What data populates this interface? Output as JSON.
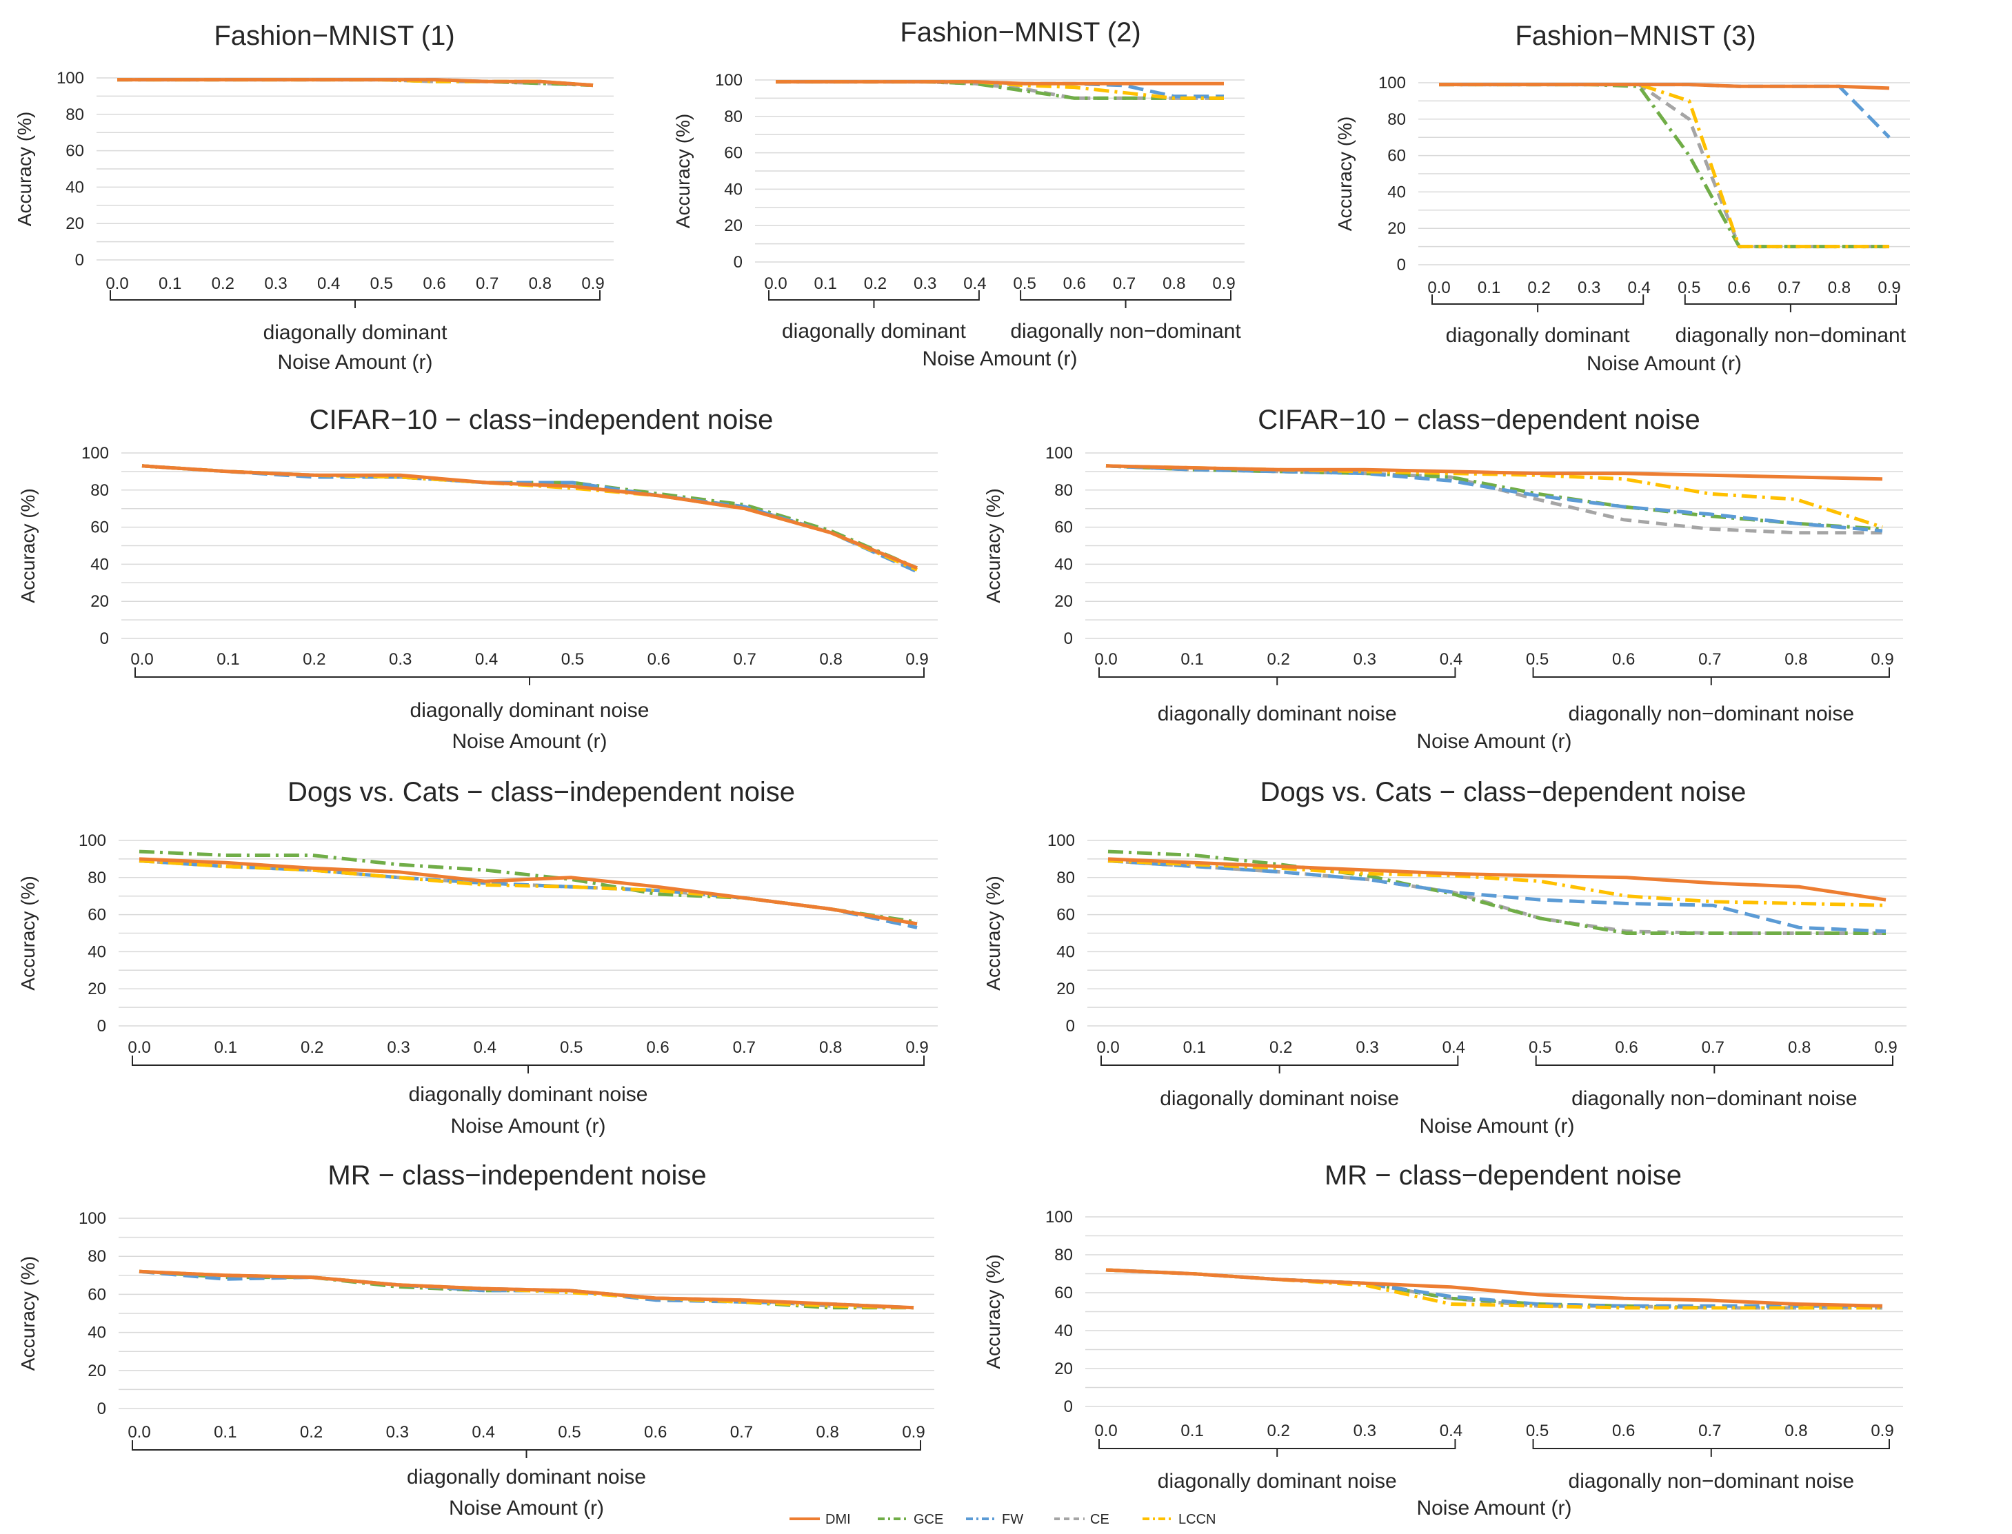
{
  "figure": {
    "legend": [
      {
        "name": "DMI",
        "color": "#ed7d31",
        "dash": ""
      },
      {
        "name": "GCE",
        "color": "#70ad47",
        "dash": "22,8,4,8"
      },
      {
        "name": "FW",
        "color": "#5b9bd5",
        "dash": "22,10"
      },
      {
        "name": "CE",
        "color": "#a5a5a5",
        "dash": "16,10"
      },
      {
        "name": "LCCN",
        "color": "#ffc000",
        "dash": "22,8,4,8"
      }
    ]
  },
  "chart_data": [
    {
      "type": "line",
      "title": "Fashion−MNIST (1)",
      "xlabel": "Noise Amount (r)",
      "ylabel": "Accuracy (%)",
      "ylim": [
        0,
        100
      ],
      "yticks": [
        0,
        20,
        40,
        60,
        80,
        100
      ],
      "x": [
        "0.0",
        "0.1",
        "0.2",
        "0.3",
        "0.4",
        "0.5",
        "0.6",
        "0.7",
        "0.8",
        "0.9"
      ],
      "groups": [
        {
          "label": "diagonally dominant",
          "from": 0,
          "to": 9
        }
      ],
      "grid": true,
      "series": [
        {
          "name": "DMI",
          "values": [
            99,
            99,
            99,
            99,
            99,
            99,
            99,
            98,
            98,
            96
          ]
        },
        {
          "name": "GCE",
          "values": [
            99,
            99,
            99,
            99,
            99,
            99,
            98,
            98,
            97,
            96
          ]
        },
        {
          "name": "FW",
          "values": [
            99,
            99,
            99,
            99,
            99,
            99,
            99,
            98,
            98,
            96
          ]
        },
        {
          "name": "CE",
          "values": [
            99,
            99,
            99,
            99,
            99,
            99,
            98,
            98,
            97,
            96
          ]
        },
        {
          "name": "LCCN",
          "values": [
            99,
            99,
            99,
            99,
            99,
            99,
            98,
            98,
            98,
            96
          ]
        }
      ]
    },
    {
      "type": "line",
      "title": "Fashion−MNIST (2)",
      "xlabel": "Noise Amount (r)",
      "ylabel": "Accuracy (%)",
      "ylim": [
        0,
        100
      ],
      "yticks": [
        0,
        20,
        40,
        60,
        80,
        100
      ],
      "x": [
        "0.0",
        "0.1",
        "0.2",
        "0.3",
        "0.4",
        "0.5",
        "0.6",
        "0.7",
        "0.8",
        "0.9"
      ],
      "groups": [
        {
          "label": "diagonally dominant",
          "from": 0,
          "to": 4
        },
        {
          "label": "diagonally non−dominant",
          "from": 5,
          "to": 9
        }
      ],
      "grid": true,
      "series": [
        {
          "name": "DMI",
          "values": [
            99,
            99,
            99,
            99,
            99,
            98,
            98,
            98,
            98,
            98
          ]
        },
        {
          "name": "GCE",
          "values": [
            99,
            99,
            99,
            99,
            98,
            94,
            90,
            90,
            90,
            90
          ]
        },
        {
          "name": "FW",
          "values": [
            99,
            99,
            99,
            99,
            99,
            98,
            98,
            97,
            91,
            91
          ]
        },
        {
          "name": "CE",
          "values": [
            99,
            99,
            99,
            99,
            98,
            95,
            90,
            90,
            90,
            90
          ]
        },
        {
          "name": "LCCN",
          "values": [
            99,
            99,
            99,
            99,
            99,
            97,
            96,
            93,
            90,
            90
          ]
        }
      ]
    },
    {
      "type": "line",
      "title": "Fashion−MNIST (3)",
      "xlabel": "Noise Amount (r)",
      "ylabel": "Accuracy (%)",
      "ylim": [
        0,
        100
      ],
      "yticks": [
        0,
        20,
        40,
        60,
        80,
        100
      ],
      "x": [
        "0.0",
        "0.1",
        "0.2",
        "0.3",
        "0.4",
        "0.5",
        "0.6",
        "0.7",
        "0.8",
        "0.9"
      ],
      "groups": [
        {
          "label": "diagonally dominant",
          "from": 0,
          "to": 4
        },
        {
          "label": "diagonally non−dominant",
          "from": 5,
          "to": 9
        }
      ],
      "grid": true,
      "series": [
        {
          "name": "DMI",
          "values": [
            99,
            99,
            99,
            99,
            99,
            99,
            98,
            98,
            98,
            97
          ]
        },
        {
          "name": "GCE",
          "values": [
            99,
            99,
            99,
            99,
            98,
            60,
            10,
            10,
            10,
            10
          ]
        },
        {
          "name": "FW",
          "values": [
            99,
            99,
            99,
            99,
            99,
            99,
            98,
            98,
            98,
            70
          ]
        },
        {
          "name": "CE",
          "values": [
            99,
            99,
            99,
            99,
            99,
            80,
            10,
            10,
            10,
            10
          ]
        },
        {
          "name": "LCCN",
          "values": [
            99,
            99,
            99,
            99,
            99,
            90,
            10,
            10,
            10,
            10
          ]
        }
      ]
    },
    {
      "type": "line",
      "title": "CIFAR−10 − class−independent noise",
      "xlabel": "Noise Amount (r)",
      "ylabel": "Accuracy (%)",
      "ylim": [
        0,
        100
      ],
      "yticks": [
        0,
        20,
        40,
        60,
        80,
        100
      ],
      "x": [
        "0.0",
        "0.1",
        "0.2",
        "0.3",
        "0.4",
        "0.5",
        "0.6",
        "0.7",
        "0.8",
        "0.9"
      ],
      "groups": [
        {
          "label": "diagonally dominant noise",
          "from": 0,
          "to": 9
        }
      ],
      "grid": true,
      "series": [
        {
          "name": "DMI",
          "values": [
            93,
            90,
            88,
            88,
            84,
            82,
            77,
            70,
            57,
            38
          ]
        },
        {
          "name": "GCE",
          "values": [
            93,
            90,
            88,
            87,
            84,
            84,
            78,
            72,
            58,
            38
          ]
        },
        {
          "name": "FW",
          "values": [
            93,
            90,
            87,
            87,
            84,
            84,
            77,
            71,
            57,
            36
          ]
        },
        {
          "name": "CE",
          "values": [
            93,
            90,
            88,
            87,
            84,
            82,
            77,
            71,
            57,
            37
          ]
        },
        {
          "name": "LCCN",
          "values": [
            93,
            90,
            88,
            87,
            84,
            81,
            77,
            70,
            57,
            37
          ]
        }
      ]
    },
    {
      "type": "line",
      "title": "CIFAR−10 − class−dependent noise",
      "xlabel": "Noise Amount (r)",
      "ylabel": "Accuracy (%)",
      "ylim": [
        0,
        100
      ],
      "yticks": [
        0,
        20,
        40,
        60,
        80,
        100
      ],
      "x": [
        "0.0",
        "0.1",
        "0.2",
        "0.3",
        "0.4",
        "0.5",
        "0.6",
        "0.7",
        "0.8",
        "0.9"
      ],
      "groups": [
        {
          "label": "diagonally dominant noise",
          "from": 0,
          "to": 4
        },
        {
          "label": "diagonally non−dominant noise",
          "from": 5,
          "to": 9
        }
      ],
      "grid": true,
      "series": [
        {
          "name": "DMI",
          "values": [
            93,
            92,
            91,
            91,
            90,
            89,
            89,
            88,
            87,
            86
          ]
        },
        {
          "name": "GCE",
          "values": [
            93,
            91,
            90,
            89,
            87,
            78,
            71,
            66,
            62,
            59
          ]
        },
        {
          "name": "FW",
          "values": [
            93,
            91,
            90,
            89,
            85,
            77,
            71,
            67,
            62,
            58
          ]
        },
        {
          "name": "CE",
          "values": [
            93,
            91,
            90,
            89,
            87,
            75,
            64,
            59,
            57,
            57
          ]
        },
        {
          "name": "LCCN",
          "values": [
            93,
            92,
            91,
            90,
            89,
            88,
            86,
            78,
            75,
            60
          ]
        }
      ]
    },
    {
      "type": "line",
      "title": "Dogs vs. Cats − class−independent noise",
      "xlabel": "Noise Amount (r)",
      "ylabel": "Accuracy (%)",
      "ylim": [
        0,
        100
      ],
      "yticks": [
        0,
        20,
        40,
        60,
        80,
        100
      ],
      "x": [
        "0.0",
        "0.1",
        "0.2",
        "0.3",
        "0.4",
        "0.5",
        "0.6",
        "0.7",
        "0.8",
        "0.9"
      ],
      "groups": [
        {
          "label": "diagonally dominant noise",
          "from": 0,
          "to": 9
        }
      ],
      "grid": true,
      "series": [
        {
          "name": "DMI",
          "values": [
            90,
            88,
            85,
            83,
            78,
            80,
            75,
            69,
            63,
            55
          ]
        },
        {
          "name": "GCE",
          "values": [
            94,
            92,
            92,
            87,
            84,
            79,
            71,
            69,
            63,
            56
          ]
        },
        {
          "name": "FW",
          "values": [
            89,
            86,
            84,
            80,
            77,
            75,
            73,
            69,
            63,
            53
          ]
        },
        {
          "name": "CE",
          "values": [
            89,
            86,
            84,
            80,
            77,
            75,
            73,
            69,
            63,
            55
          ]
        },
        {
          "name": "LCCN",
          "values": [
            89,
            86,
            84,
            80,
            76,
            75,
            73,
            69,
            63,
            55
          ]
        }
      ]
    },
    {
      "type": "line",
      "title": "Dogs vs. Cats − class−dependent noise",
      "xlabel": "Noise Amount (r)",
      "ylabel": "Accuracy (%)",
      "ylim": [
        0,
        100
      ],
      "yticks": [
        0,
        20,
        40,
        60,
        80,
        100
      ],
      "x": [
        "0.0",
        "0.1",
        "0.2",
        "0.3",
        "0.4",
        "0.5",
        "0.6",
        "0.7",
        "0.8",
        "0.9"
      ],
      "groups": [
        {
          "label": "diagonally dominant noise",
          "from": 0,
          "to": 4
        },
        {
          "label": "diagonally non−dominant noise",
          "from": 5,
          "to": 9
        }
      ],
      "grid": true,
      "series": [
        {
          "name": "DMI",
          "values": [
            90,
            88,
            86,
            84,
            82,
            81,
            80,
            77,
            75,
            68
          ]
        },
        {
          "name": "GCE",
          "values": [
            94,
            92,
            87,
            81,
            71,
            58,
            50,
            50,
            50,
            50
          ]
        },
        {
          "name": "FW",
          "values": [
            89,
            86,
            83,
            79,
            72,
            68,
            66,
            65,
            53,
            51
          ]
        },
        {
          "name": "CE",
          "values": [
            89,
            86,
            83,
            79,
            72,
            58,
            51,
            50,
            50,
            50
          ]
        },
        {
          "name": "LCCN",
          "values": [
            89,
            87,
            85,
            82,
            81,
            78,
            70,
            67,
            66,
            65
          ]
        }
      ]
    },
    {
      "type": "line",
      "title": "MR − class−independent noise",
      "xlabel": "Noise Amount (r)",
      "ylabel": "Accuracy (%)",
      "ylim": [
        0,
        100
      ],
      "yticks": [
        0,
        20,
        40,
        60,
        80,
        100
      ],
      "x": [
        "0.0",
        "0.1",
        "0.2",
        "0.3",
        "0.4",
        "0.5",
        "0.6",
        "0.7",
        "0.8",
        "0.9"
      ],
      "groups": [
        {
          "label": "diagonally dominant noise",
          "from": 0,
          "to": 9
        }
      ],
      "grid": true,
      "series": [
        {
          "name": "DMI",
          "values": [
            72,
            70,
            69,
            65,
            63,
            62,
            58,
            57,
            55,
            53
          ]
        },
        {
          "name": "GCE",
          "values": [
            72,
            69,
            69,
            64,
            62,
            62,
            58,
            56,
            53,
            53
          ]
        },
        {
          "name": "FW",
          "values": [
            72,
            68,
            69,
            65,
            62,
            62,
            57,
            56,
            55,
            53
          ]
        },
        {
          "name": "CE",
          "values": [
            72,
            70,
            69,
            65,
            63,
            62,
            58,
            57,
            54,
            53
          ]
        },
        {
          "name": "LCCN",
          "values": [
            72,
            70,
            69,
            65,
            63,
            61,
            58,
            56,
            54,
            53
          ]
        }
      ]
    },
    {
      "type": "line",
      "title": "MR − class−dependent noise",
      "xlabel": "Noise Amount (r)",
      "ylabel": "Accuracy (%)",
      "ylim": [
        0,
        100
      ],
      "yticks": [
        0,
        20,
        40,
        60,
        80,
        100
      ],
      "x": [
        "0.0",
        "0.1",
        "0.2",
        "0.3",
        "0.4",
        "0.5",
        "0.6",
        "0.7",
        "0.8",
        "0.9"
      ],
      "groups": [
        {
          "label": "diagonally dominant noise",
          "from": 0,
          "to": 4
        },
        {
          "label": "diagonally non−dominant noise",
          "from": 5,
          "to": 9
        }
      ],
      "grid": true,
      "series": [
        {
          "name": "DMI",
          "values": [
            72,
            70,
            67,
            65,
            63,
            59,
            57,
            56,
            54,
            53
          ]
        },
        {
          "name": "GCE",
          "values": [
            72,
            70,
            67,
            65,
            57,
            54,
            53,
            52,
            52,
            52
          ]
        },
        {
          "name": "FW",
          "values": [
            72,
            70,
            67,
            65,
            58,
            54,
            53,
            53,
            53,
            53
          ]
        },
        {
          "name": "CE",
          "values": [
            72,
            70,
            67,
            65,
            57,
            53,
            53,
            52,
            52,
            52
          ]
        },
        {
          "name": "LCCN",
          "values": [
            72,
            70,
            67,
            64,
            54,
            53,
            52,
            52,
            52,
            52
          ]
        }
      ]
    }
  ]
}
